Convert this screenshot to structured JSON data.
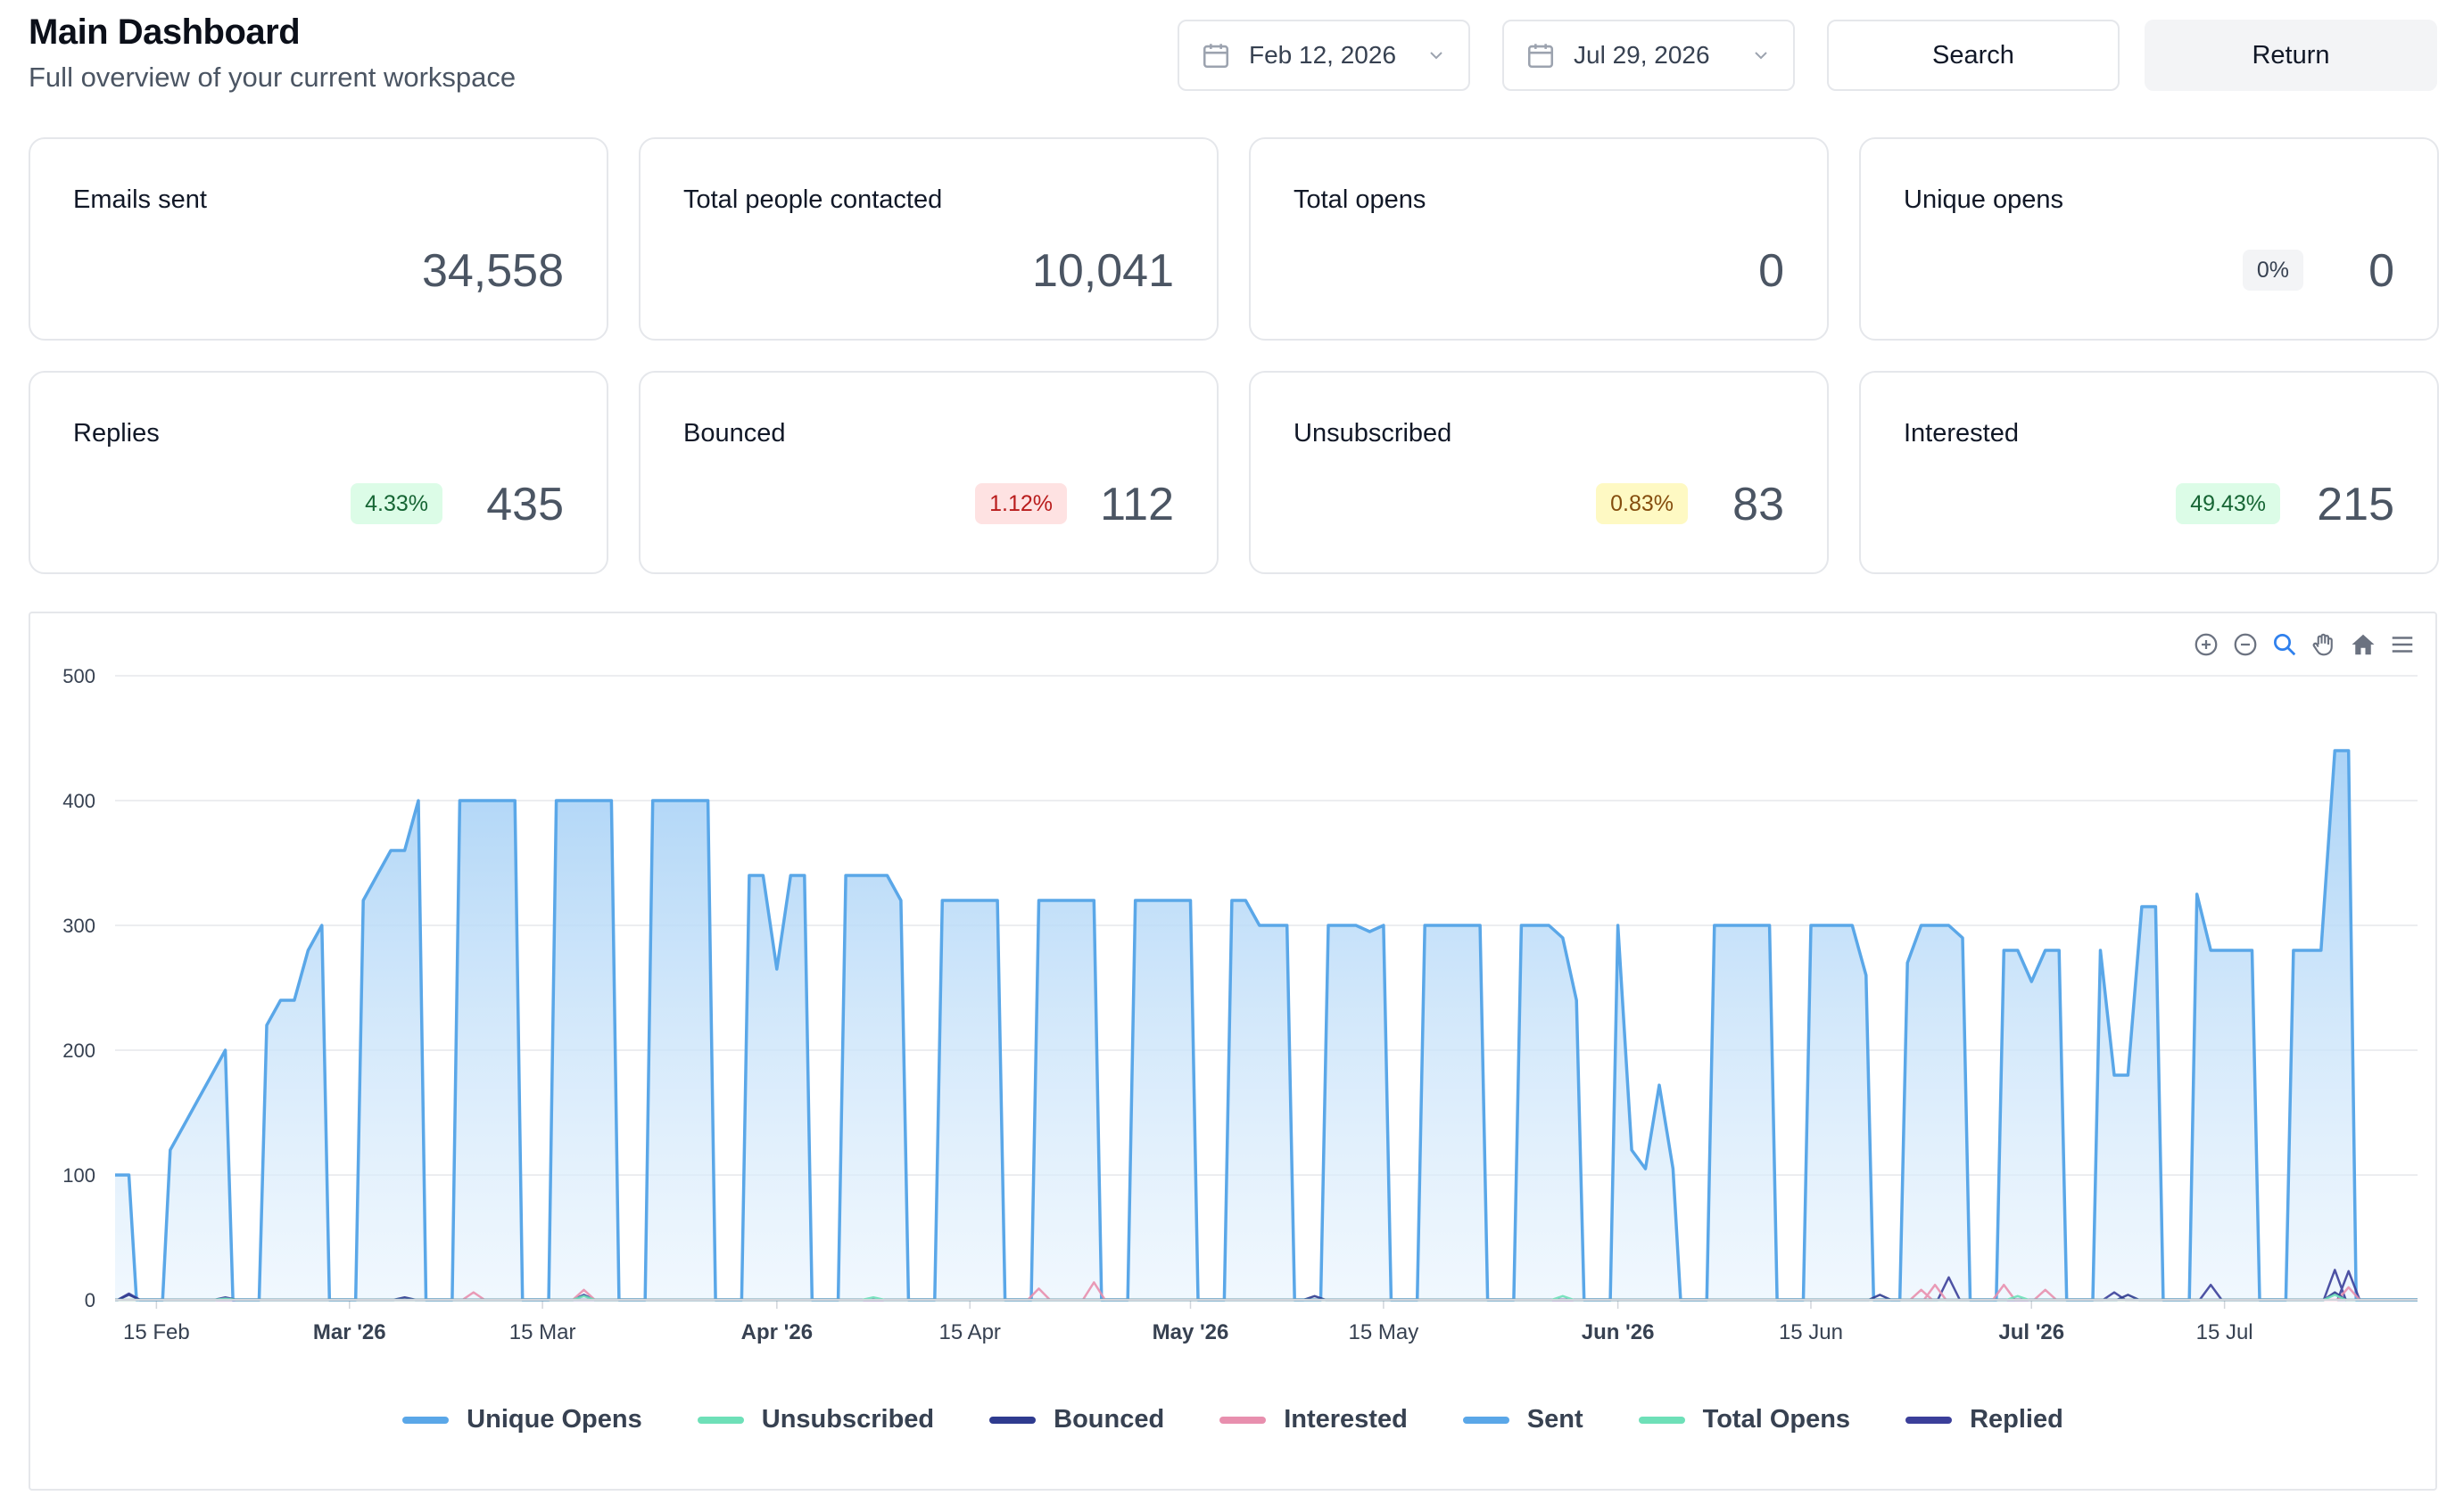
{
  "header": {
    "title": "Main Dashboard",
    "subtitle": "Full overview of your current workspace"
  },
  "controls": {
    "start_date": "Feb 12, 2026",
    "end_date": "Jul 29, 2026",
    "search_label": "Search",
    "return_label": "Return"
  },
  "cards": [
    {
      "label": "Emails sent",
      "value": "34,558",
      "badge": null,
      "badge_style": null
    },
    {
      "label": "Total people contacted",
      "value": "10,041",
      "badge": null,
      "badge_style": null
    },
    {
      "label": "Total opens",
      "value": "0",
      "badge": null,
      "badge_style": null
    },
    {
      "label": "Unique opens",
      "value": "0",
      "badge": "0%",
      "badge_style": "gray"
    },
    {
      "label": "Replies",
      "value": "435",
      "badge": "4.33%",
      "badge_style": "green"
    },
    {
      "label": "Bounced",
      "value": "112",
      "badge": "1.12%",
      "badge_style": "red"
    },
    {
      "label": "Unsubscribed",
      "value": "83",
      "badge": "0.83%",
      "badge_style": "yellow"
    },
    {
      "label": "Interested",
      "value": "215",
      "badge": "49.43%",
      "badge_style": "green"
    }
  ],
  "toolbar": {
    "icons": [
      "zoom-in-icon",
      "zoom-out-icon",
      "zoom-select-icon",
      "pan-hand-icon",
      "home-reset-icon",
      "menu-icon"
    ]
  },
  "colors": {
    "sent": "#5aa7e8",
    "unique_opens": "#5aa7e8",
    "total_opens": "#6ee0b8",
    "unsubscribed": "#6ee0b8",
    "bounced": "#2f3b8f",
    "interested": "#e88fae",
    "replied": "#3b3f9a"
  },
  "chart_data": {
    "type": "area",
    "x_start": "2026-02-12",
    "x_end": "2026-07-29",
    "ylim": [
      0,
      500
    ],
    "yticks": [
      0,
      100,
      200,
      300,
      400,
      500
    ],
    "xticks": [
      {
        "label": "15 Feb",
        "date": "2026-02-15",
        "bold": false
      },
      {
        "label": "Mar '26",
        "date": "2026-03-01",
        "bold": true
      },
      {
        "label": "15 Mar",
        "date": "2026-03-15",
        "bold": false
      },
      {
        "label": "Apr '26",
        "date": "2026-04-01",
        "bold": true
      },
      {
        "label": "15 Apr",
        "date": "2026-04-15",
        "bold": false
      },
      {
        "label": "May '26",
        "date": "2026-05-01",
        "bold": true
      },
      {
        "label": "15 May",
        "date": "2026-05-15",
        "bold": false
      },
      {
        "label": "Jun '26",
        "date": "2026-06-01",
        "bold": true
      },
      {
        "label": "15 Jun",
        "date": "2026-06-15",
        "bold": false
      },
      {
        "label": "Jul '26",
        "date": "2026-07-01",
        "bold": true
      },
      {
        "label": "15 Jul",
        "date": "2026-07-15",
        "bold": false
      }
    ],
    "legend": [
      "Unique Opens",
      "Unsubscribed",
      "Bounced",
      "Interested",
      "Sent",
      "Total Opens",
      "Replied"
    ],
    "legend_placement": "bottom",
    "sent_segments": [
      {
        "start": "2026-02-12",
        "end": "2026-02-13",
        "values": [
          100,
          100
        ]
      },
      {
        "start": "2026-02-16",
        "end": "2026-02-20",
        "values": [
          120,
          140,
          160,
          180,
          200
        ]
      },
      {
        "start": "2026-02-23",
        "end": "2026-02-27",
        "values": [
          220,
          240,
          240,
          280,
          300
        ]
      },
      {
        "start": "2026-03-02",
        "end": "2026-03-06",
        "values": [
          320,
          340,
          360,
          360,
          400
        ]
      },
      {
        "start": "2026-03-09",
        "end": "2026-03-13",
        "values": [
          400,
          400,
          400,
          400,
          400
        ]
      },
      {
        "start": "2026-03-16",
        "end": "2026-03-20",
        "values": [
          400,
          400,
          400,
          400,
          400
        ]
      },
      {
        "start": "2026-03-23",
        "end": "2026-03-27",
        "values": [
          400,
          400,
          400,
          400,
          400
        ]
      },
      {
        "start": "2026-03-30",
        "end": "2026-04-03",
        "values": [
          340,
          340,
          265,
          340,
          340
        ]
      },
      {
        "start": "2026-04-06",
        "end": "2026-04-10",
        "values": [
          340,
          340,
          340,
          340,
          320
        ]
      },
      {
        "start": "2026-04-13",
        "end": "2026-04-17",
        "values": [
          320,
          320,
          320,
          320,
          320
        ]
      },
      {
        "start": "2026-04-20",
        "end": "2026-04-24",
        "values": [
          320,
          320,
          320,
          320,
          320
        ]
      },
      {
        "start": "2026-04-27",
        "end": "2026-05-01",
        "values": [
          320,
          320,
          320,
          320,
          320
        ]
      },
      {
        "start": "2026-05-04",
        "end": "2026-05-08",
        "values": [
          320,
          320,
          300,
          300,
          300
        ]
      },
      {
        "start": "2026-05-11",
        "end": "2026-05-15",
        "values": [
          300,
          300,
          300,
          295,
          300
        ]
      },
      {
        "start": "2026-05-18",
        "end": "2026-05-22",
        "values": [
          300,
          300,
          300,
          300,
          300
        ]
      },
      {
        "start": "2026-05-25",
        "end": "2026-05-29",
        "values": [
          300,
          300,
          300,
          290,
          240
        ]
      },
      {
        "start": "2026-06-01",
        "end": "2026-06-01",
        "values": [
          300
        ]
      },
      {
        "start": "2026-06-02",
        "end": "2026-06-05",
        "values": [
          120,
          105,
          172,
          105
        ]
      },
      {
        "start": "2026-06-08",
        "end": "2026-06-12",
        "values": [
          300,
          300,
          300,
          300,
          300
        ]
      },
      {
        "start": "2026-06-15",
        "end": "2026-06-19",
        "values": [
          300,
          300,
          300,
          300,
          260
        ]
      },
      {
        "start": "2026-06-22",
        "end": "2026-06-26",
        "values": [
          270,
          300,
          300,
          300,
          290
        ]
      },
      {
        "start": "2026-06-29",
        "end": "2026-07-03",
        "values": [
          280,
          280,
          255,
          280,
          280
        ]
      },
      {
        "start": "2026-07-06",
        "end": "2026-07-10",
        "values": [
          280,
          180,
          180,
          315,
          315
        ]
      },
      {
        "start": "2026-07-13",
        "end": "2026-07-17",
        "values": [
          325,
          280,
          280,
          280,
          280
        ]
      },
      {
        "start": "2026-07-20",
        "end": "2026-07-24",
        "values": [
          280,
          280,
          280,
          440,
          440
        ]
      }
    ],
    "minor_series": [
      {
        "name": "Replied",
        "points": [
          [
            "2026-02-13",
            5
          ],
          [
            "2026-02-20",
            2
          ],
          [
            "2026-03-18",
            4
          ],
          [
            "2026-06-25",
            18
          ],
          [
            "2026-07-07",
            6
          ],
          [
            "2026-07-14",
            12
          ],
          [
            "2026-07-23",
            24
          ],
          [
            "2026-07-24",
            23
          ]
        ]
      },
      {
        "name": "Interested",
        "points": [
          [
            "2026-03-10",
            6
          ],
          [
            "2026-03-18",
            8
          ],
          [
            "2026-04-20",
            9
          ],
          [
            "2026-04-24",
            14
          ],
          [
            "2026-06-23",
            8
          ],
          [
            "2026-06-24",
            12
          ],
          [
            "2026-06-29",
            12
          ],
          [
            "2026-07-02",
            8
          ],
          [
            "2026-07-24",
            10
          ]
        ]
      },
      {
        "name": "Bounced",
        "points": [
          [
            "2026-02-13",
            4
          ],
          [
            "2026-03-05",
            2
          ],
          [
            "2026-05-10",
            3
          ],
          [
            "2026-06-20",
            4
          ],
          [
            "2026-07-08",
            4
          ],
          [
            "2026-07-23",
            6
          ]
        ]
      },
      {
        "name": "Unsubscribed",
        "points": [
          [
            "2026-02-20",
            1
          ],
          [
            "2026-03-18",
            3
          ],
          [
            "2026-04-08",
            2
          ],
          [
            "2026-05-28",
            3
          ],
          [
            "2026-06-30",
            3
          ],
          [
            "2026-07-23",
            4
          ]
        ]
      }
    ]
  }
}
